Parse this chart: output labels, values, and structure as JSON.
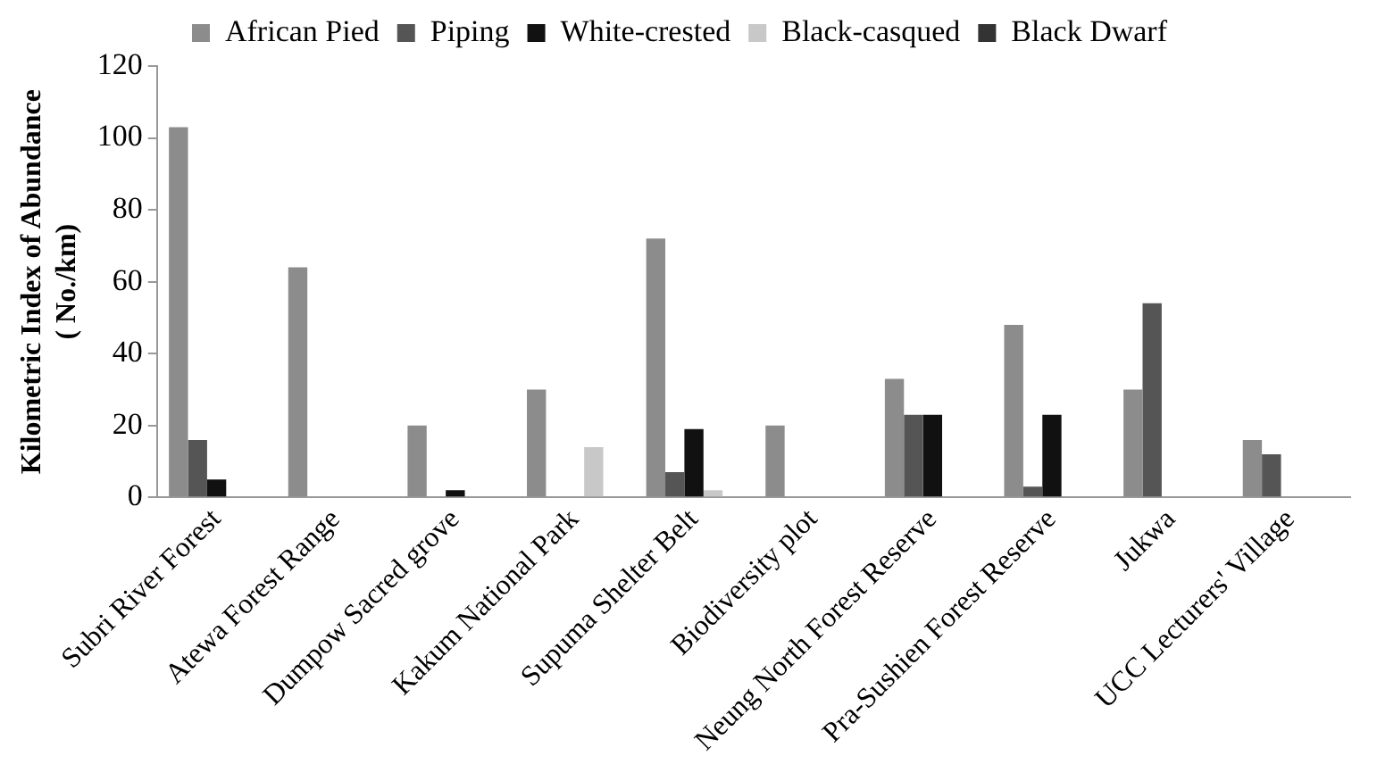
{
  "chart_data": {
    "type": "bar",
    "ylabel": "Kilometric Index of Abundance\n( No./km)",
    "categories": [
      "Subri River Forest",
      "Atewa Forest Range",
      "Dumpow Sacred grove",
      "Kakum National Park",
      "Supuma Shelter Belt",
      "Biodiversity plot",
      "Neung North Forest Reserve",
      "Pra-Sushien Forest Reserve",
      "Jukwa",
      "UCC Lecturers' Village"
    ],
    "series": [
      {
        "name": "African Pied",
        "color": "#8c8c8c",
        "values": [
          103,
          64,
          20,
          30,
          72,
          20,
          33,
          48,
          30,
          16
        ]
      },
      {
        "name": "Piping",
        "color": "#555555",
        "values": [
          16,
          null,
          null,
          null,
          7,
          null,
          23,
          3,
          54,
          12
        ]
      },
      {
        "name": "White-crested",
        "color": "#111111",
        "values": [
          5,
          null,
          2,
          null,
          19,
          null,
          23,
          23,
          null,
          null
        ]
      },
      {
        "name": "Black-casqued",
        "color": "#c8c8c8",
        "values": [
          null,
          null,
          null,
          14,
          2,
          null,
          null,
          null,
          null,
          null
        ]
      },
      {
        "name": "Black Dwarf",
        "color": "#333333",
        "values": [
          null,
          null,
          null,
          null,
          null,
          null,
          null,
          null,
          null,
          null
        ]
      }
    ],
    "ylim": [
      0,
      120
    ],
    "yticks": [
      0,
      20,
      40,
      60,
      80,
      100,
      120
    ],
    "grid": false,
    "legend": "top"
  }
}
